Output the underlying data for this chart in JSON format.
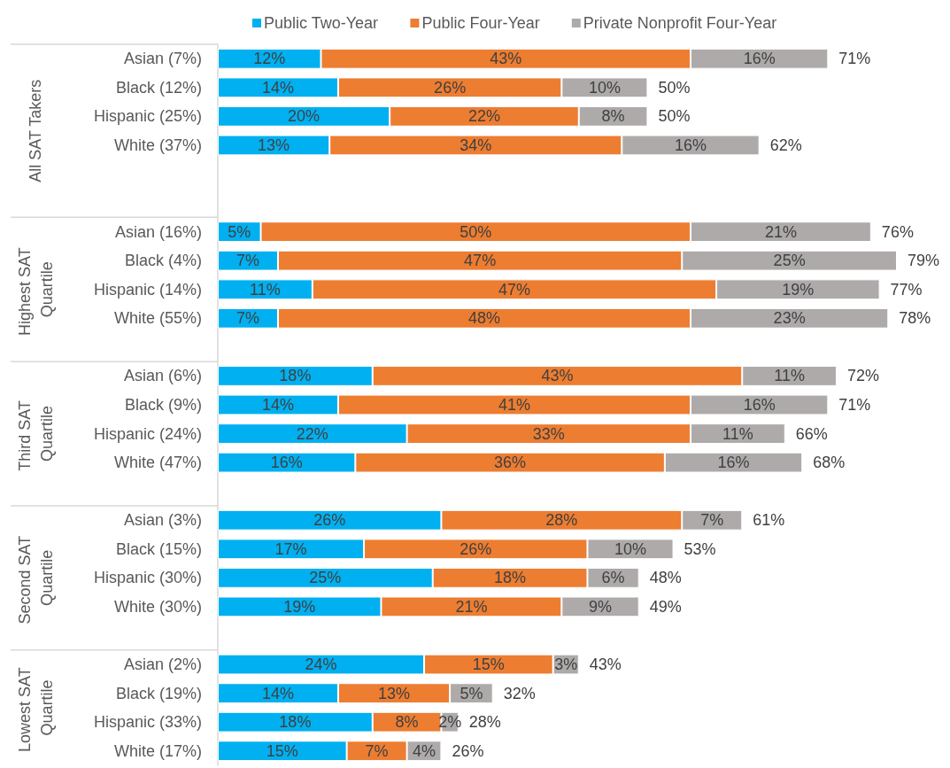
{
  "chart_data": {
    "type": "bar",
    "orientation": "horizontal",
    "stacked": true,
    "legend": "top",
    "tick_labels": "y",
    "categories": [
      "Asian (7%)",
      "Black (12%)",
      "Hispanic (25%)",
      "White (37%)",
      null,
      null,
      "Asian (16%)",
      "Black (4%)",
      "Hispanic (14%)",
      "White (55%)",
      null,
      "Asian (6%)",
      "Black (9%)",
      "Hispanic (24%)",
      "White (47%)",
      null,
      "Asian (3%)",
      "Black (15%)",
      "Hispanic (30%)",
      "White (30%)",
      null,
      "Asian (2%)",
      "Black (19%)",
      "Hispanic (33%)",
      "White (17%)"
    ],
    "series": [
      {
        "name": "Public Two-Year",
        "color": "#00b0f0",
        "values": [
          12,
          14,
          20,
          13,
          null,
          null,
          5,
          7,
          11,
          7,
          null,
          18,
          14,
          22,
          16,
          null,
          26,
          17,
          25,
          19,
          null,
          24,
          14,
          18,
          15
        ],
        "value_labels": [
          "12%",
          "14%",
          "20%",
          "13%",
          null,
          null,
          "5%",
          "7%",
          "11%",
          "7%",
          null,
          "18%",
          "14%",
          "22%",
          "16%",
          null,
          "26%",
          "17%",
          "25%",
          "19%",
          null,
          "24%",
          "14%",
          "18%",
          "15%"
        ]
      },
      {
        "name": "Public Four-Year",
        "color": "#ed7d31",
        "values": [
          43,
          26,
          22,
          34,
          null,
          null,
          50,
          47,
          47,
          48,
          null,
          43,
          41,
          33,
          36,
          null,
          28,
          26,
          18,
          21,
          null,
          15,
          13,
          8,
          7
        ],
        "value_labels": [
          "43%",
          "26%",
          "22%",
          "34%",
          null,
          null,
          "50%",
          "47%",
          "47%",
          "48%",
          null,
          "43%",
          "41%",
          "33%",
          "36%",
          null,
          "28%",
          "26%",
          "18%",
          "21%",
          null,
          "15%",
          "13%",
          "8%",
          "7%"
        ]
      },
      {
        "name": "Private Nonprofit Four-Year",
        "color": "#aeaaaa",
        "values": [
          16,
          10,
          8,
          16,
          null,
          null,
          21,
          25,
          19,
          23,
          null,
          11,
          16,
          11,
          16,
          null,
          7,
          10,
          6,
          9,
          null,
          3,
          5,
          2,
          4
        ],
        "value_labels": [
          "16%",
          "10%",
          "8%",
          "16%",
          null,
          null,
          "21%",
          "25%",
          "19%",
          "23%",
          null,
          "11%",
          "16%",
          "11%",
          "16%",
          null,
          "7%",
          "10%",
          "6%",
          "9%",
          null,
          "3%",
          "5%",
          "2%",
          "4%"
        ]
      }
    ],
    "totals": [
      "71%",
      "50%",
      "50%",
      "62%",
      null,
      null,
      "76%",
      "79%",
      "77%",
      "78%",
      null,
      "72%",
      "71%",
      "66%",
      "68%",
      null,
      "61%",
      "53%",
      "48%",
      "49%",
      null,
      "43%",
      "32%",
      "28%",
      "26%"
    ],
    "annotations": [
      "All SAT Takers",
      "Highest SAT Quartile",
      "Third SAT Quartile",
      "Second SAT Quartile",
      "Lowest SAT Quartile"
    ]
  }
}
